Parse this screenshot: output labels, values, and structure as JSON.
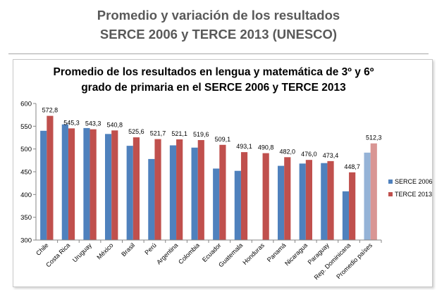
{
  "slide": {
    "title_line1": "Promedio y variación de los resultados",
    "title_line2": "SERCE 2006 y TERCE 2013 (UNESCO)"
  },
  "colors": {
    "serce": "#4f81bd",
    "terce": "#c0504d",
    "serce_avg": "#95b3d7",
    "terce_avg": "#d99694"
  },
  "chart_data": {
    "type": "bar",
    "title_lines": [
      "Promedio de los resultados en lengua y matemática de 3º y 6º",
      "grado de primaria en el SERCE 2006 y TERCE 2013"
    ],
    "xlabel": "",
    "ylabel": "",
    "ylim": [
      300,
      600
    ],
    "yticks": [
      "300",
      "350",
      "400",
      "450",
      "500",
      "550",
      "600"
    ],
    "grid": false,
    "legend_position": "right",
    "categories": [
      "Chile",
      "Costa Rica",
      "Uruguay",
      "México",
      "Brasil",
      "Perú",
      "Argentina",
      "Colombia",
      "Ecuador",
      "Guatemala",
      "Honduras",
      "Panamá",
      "Nicaragua",
      "Paraguay",
      "Rep. Dominicana",
      "Promedio países"
    ],
    "series": [
      {
        "name": "SERCE 2006",
        "values": [
          540,
          554,
          546,
          533,
          507,
          478,
          508,
          503,
          457,
          452,
          null,
          463,
          468,
          469,
          407,
          492
        ]
      },
      {
        "name": "TERCE 2013",
        "values": [
          572.8,
          545.3,
          543.3,
          540.8,
          525.6,
          521.7,
          521.1,
          519.6,
          509.1,
          493.1,
          490.8,
          482.0,
          476.0,
          473.4,
          448.7,
          512.3
        ]
      }
    ],
    "data_labels": [
      "572,8",
      "545,3",
      "543,3",
      "540,8",
      "525,6",
      "521,7",
      "521,1",
      "519,6",
      "509,1",
      "493,1",
      "490,8",
      "482,0",
      "476,0",
      "473,4",
      "448,7",
      "512,3"
    ]
  }
}
